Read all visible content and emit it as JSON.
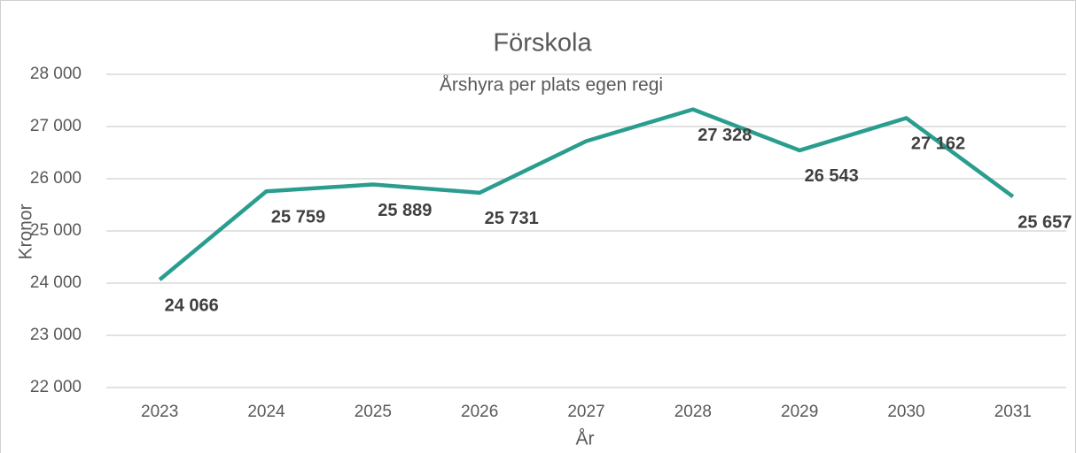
{
  "chart_data": {
    "type": "line",
    "title": "Förskola",
    "subtitle": "Årshyra per plats  egen regi",
    "x_label": "År",
    "y_label": "Kronor",
    "categories": [
      "2023",
      "2024",
      "2025",
      "2026",
      "2027",
      "2028",
      "2029",
      "2030",
      "2031"
    ],
    "series": [
      {
        "name": "Förskola",
        "color": "#2a9d8f",
        "values": [
          24066,
          25759,
          25889,
          25731,
          26720,
          27328,
          26543,
          27162,
          25657
        ],
        "value_labels": [
          "24 066",
          "25 759",
          "25 889",
          "25 731",
          null,
          "27 328",
          "26 543",
          "27 162",
          "25 657"
        ]
      }
    ],
    "ylim": [
      22000,
      28000
    ],
    "yticks": [
      {
        "value": 22000,
        "label": "22 000"
      },
      {
        "value": 23000,
        "label": "23 000"
      },
      {
        "value": 24000,
        "label": "24 000"
      },
      {
        "value": 25000,
        "label": "25 000"
      },
      {
        "value": 26000,
        "label": "26 000"
      },
      {
        "value": 27000,
        "label": "27 000"
      },
      {
        "value": 28000,
        "label": "28 000"
      }
    ],
    "grid": true
  }
}
